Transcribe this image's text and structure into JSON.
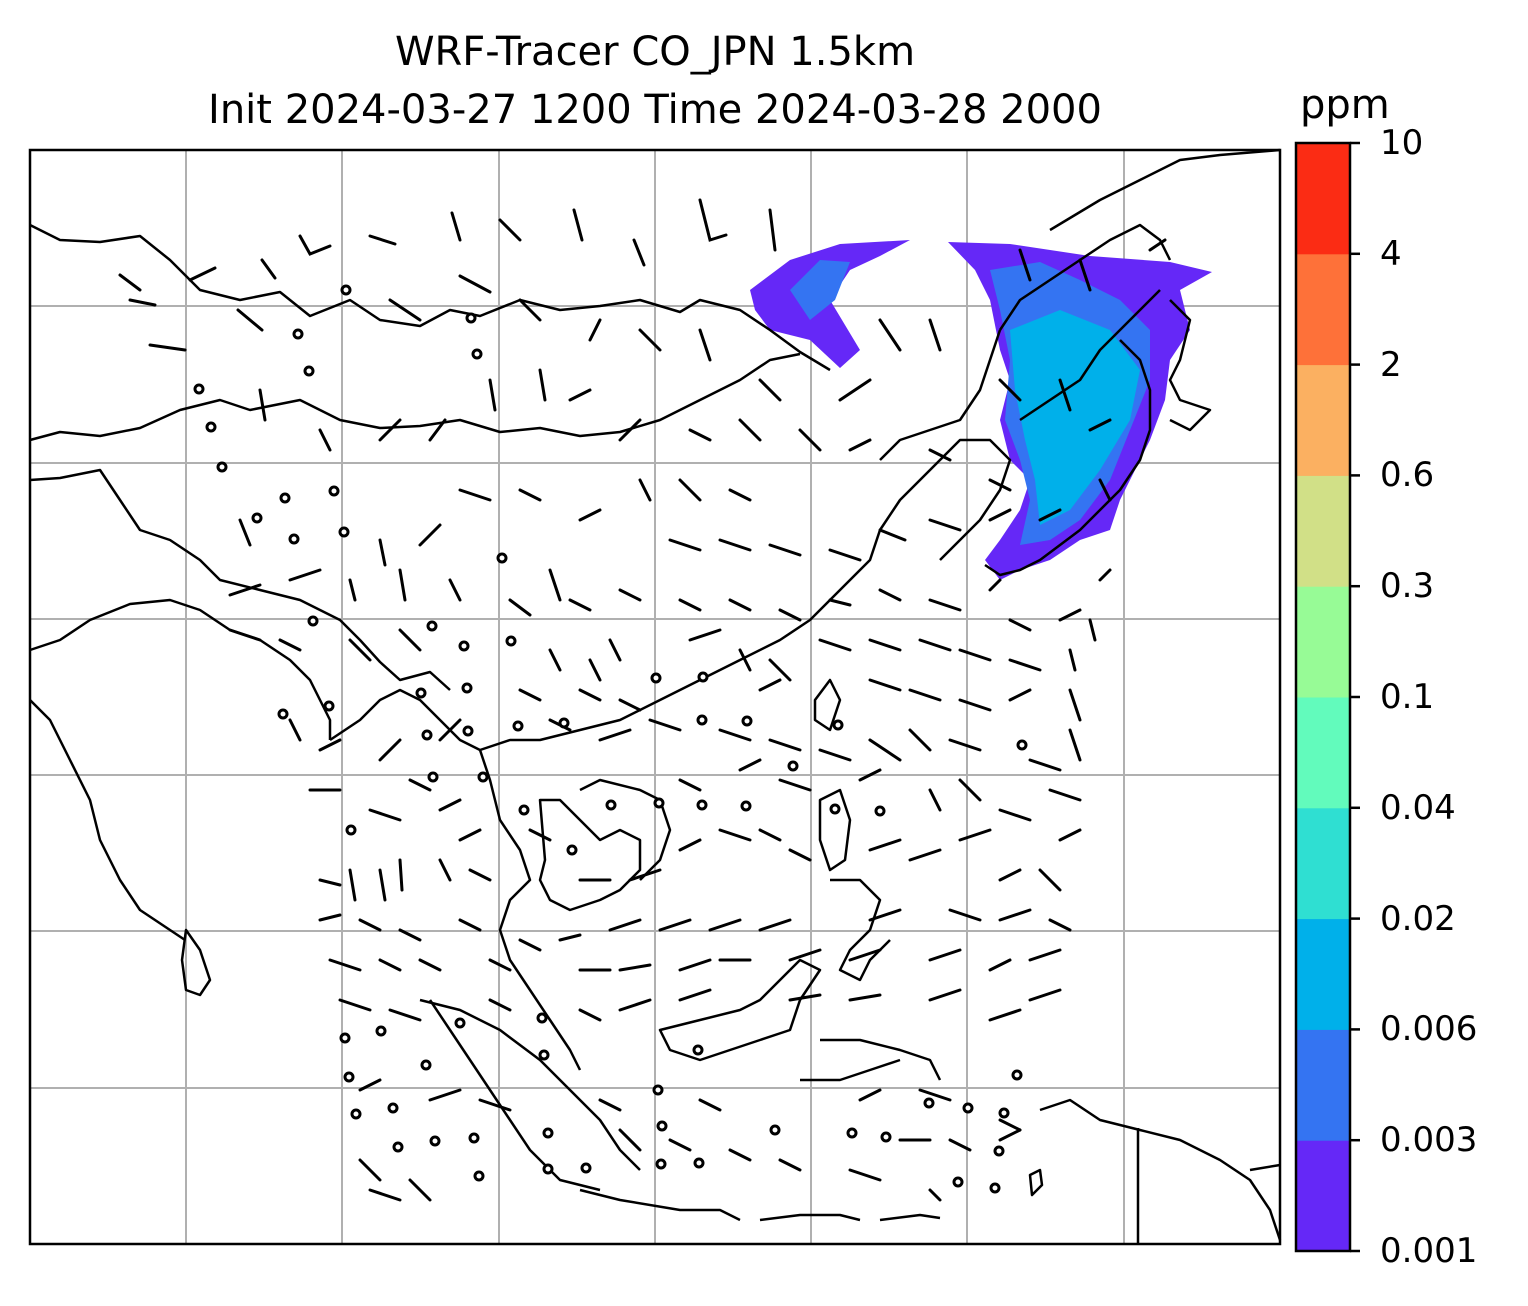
{
  "title": {
    "line1": "WRF-Tracer CO_JPN 1.5km",
    "line2": "Init 2024-03-27 1200 Time 2024-03-28 2000"
  },
  "colorbar": {
    "unit": "ppm",
    "levels": [
      "0.001",
      "0.003",
      "0.006",
      "0.02",
      "0.04",
      "0.1",
      "0.3",
      "0.6",
      "2",
      "4",
      "10"
    ],
    "colors": [
      "#6528f7",
      "#3474f2",
      "#00b0ea",
      "#2fdfd2",
      "#62fbbc",
      "#97fb96",
      "#d1e087",
      "#fbb061",
      "#fe7139",
      "#fb2c14"
    ]
  },
  "map": {
    "projection": "geographic",
    "gridlines": true,
    "overlay": "wind barbs",
    "tracer_field": "CO tracer plume over northeast China / Korea / Japan region"
  }
}
